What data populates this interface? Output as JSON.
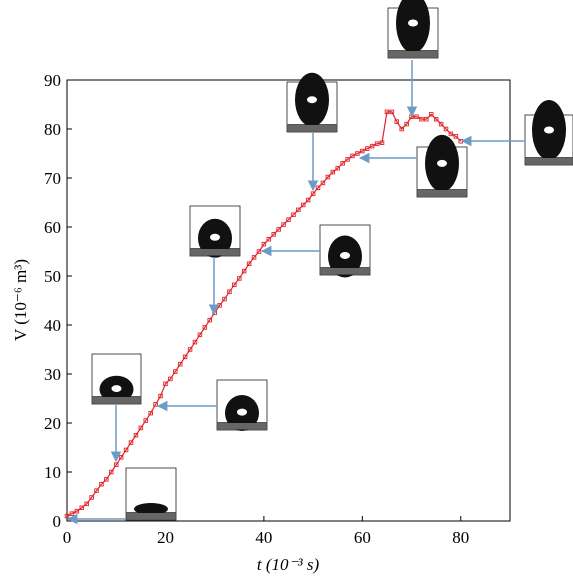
{
  "chart_data": {
    "type": "line",
    "x_label": "t (10⁻³ s)",
    "y_label": "V (10⁻⁶ m³)",
    "x": [
      0,
      1,
      2,
      3,
      4,
      5,
      6,
      7,
      8,
      9,
      10,
      11,
      12,
      13,
      14,
      15,
      16,
      17,
      18,
      19,
      20,
      21,
      22,
      23,
      24,
      25,
      26,
      27,
      28,
      29,
      30,
      31,
      32,
      33,
      34,
      35,
      36,
      37,
      38,
      39,
      40,
      41,
      42,
      43,
      44,
      45,
      46,
      47,
      48,
      49,
      50,
      51,
      52,
      53,
      54,
      55,
      56,
      57,
      58,
      59,
      60,
      61,
      62,
      63,
      64,
      65,
      66,
      67,
      68,
      69,
      70,
      71,
      72,
      73,
      74,
      75,
      76,
      77,
      78,
      79,
      80
    ],
    "series": [
      {
        "color": "#e0242a",
        "values": [
          1,
          1.5,
          2,
          2.7,
          3.5,
          4.8,
          6.2,
          7.5,
          8.5,
          10,
          11.5,
          13,
          14.5,
          16,
          17.5,
          19,
          20.5,
          22,
          23.8,
          25.5,
          28,
          29,
          30.5,
          32,
          33.5,
          35,
          36.5,
          38,
          39.5,
          41,
          42.5,
          44,
          45.3,
          46.8,
          48.2,
          49.5,
          51,
          52.5,
          53.8,
          55,
          56.5,
          57.5,
          58.5,
          59.5,
          60.5,
          61.5,
          62.5,
          63.5,
          64.5,
          65.5,
          66.8,
          68,
          69,
          70.2,
          71.2,
          72,
          73,
          73.8,
          74.5,
          75,
          75.5,
          76,
          76.5,
          77,
          77.2,
          83.5,
          83.5,
          81.5,
          80,
          81,
          82.5,
          82.5,
          82,
          82,
          83,
          82,
          81,
          80,
          79,
          78.5,
          77.5
        ]
      }
    ],
    "xlim": [
      0,
      90
    ],
    "xticks": [
      0,
      20,
      40,
      60,
      80
    ],
    "ylim": [
      0,
      90
    ],
    "yticks": [
      0,
      10,
      20,
      30,
      40,
      50,
      60,
      70,
      80,
      90
    ]
  }
}
